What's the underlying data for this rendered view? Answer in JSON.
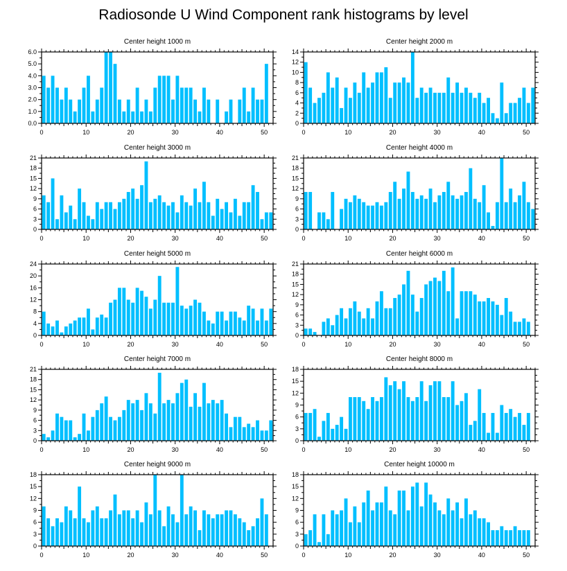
{
  "title": "Radiosonde U Wind Component rank histograms by level",
  "bar_color": "#00bfff",
  "axis_color": "#000000",
  "chart_data": [
    {
      "type": "bar",
      "title": "Center height 1000 m",
      "xlabel": "",
      "ylabel": "",
      "x": [
        0,
        1,
        2,
        3,
        4,
        5,
        6,
        7,
        8,
        9,
        10,
        11,
        12,
        13,
        14,
        15,
        16,
        17,
        18,
        19,
        20,
        21,
        22,
        23,
        24,
        25,
        26,
        27,
        28,
        29,
        30,
        31,
        32,
        33,
        34,
        35,
        36,
        37,
        38,
        39,
        40,
        41,
        42,
        43,
        44,
        45,
        46,
        47,
        48,
        49,
        50,
        51
      ],
      "values": [
        4,
        3,
        4,
        3,
        2,
        3,
        2,
        1,
        2,
        3,
        4,
        1,
        2,
        3,
        6,
        6,
        5,
        2,
        1,
        2,
        1,
        3,
        1,
        2,
        1,
        3,
        4,
        4,
        4,
        2,
        4,
        3,
        3,
        3,
        2,
        1,
        3,
        2,
        0,
        2,
        0,
        1,
        2,
        0,
        2,
        3,
        1,
        3,
        2,
        2,
        5,
        0
      ],
      "ylim": [
        0,
        6
      ],
      "yticks": [
        0,
        1,
        2,
        3,
        4,
        5,
        6
      ],
      "ytick_labels": [
        "0.0",
        "1.0",
        "2.0",
        "3.0",
        "4.0",
        "5.0",
        "6.0"
      ],
      "xlim": [
        0,
        52
      ],
      "xticks": [
        0,
        10,
        20,
        30,
        40,
        50
      ],
      "xtick_labels": [
        "0",
        "10",
        "20",
        "30",
        "40",
        "50"
      ]
    },
    {
      "type": "bar",
      "title": "Center height 2000 m",
      "xlabel": "",
      "ylabel": "",
      "x": [
        0,
        1,
        2,
        3,
        4,
        5,
        6,
        7,
        8,
        9,
        10,
        11,
        12,
        13,
        14,
        15,
        16,
        17,
        18,
        19,
        20,
        21,
        22,
        23,
        24,
        25,
        26,
        27,
        28,
        29,
        30,
        31,
        32,
        33,
        34,
        35,
        36,
        37,
        38,
        39,
        40,
        41,
        42,
        43,
        44,
        45,
        46,
        47,
        48,
        49,
        50,
        51
      ],
      "values": [
        12,
        7,
        4,
        5,
        6,
        10,
        7,
        9,
        3,
        7,
        5,
        8,
        6,
        10,
        7,
        8,
        10,
        10,
        11,
        5,
        8,
        8,
        9,
        8,
        14,
        5,
        7,
        6,
        7,
        6,
        6,
        6,
        9,
        6,
        8,
        6,
        7,
        6,
        5,
        6,
        4,
        5,
        2,
        1,
        8,
        2,
        4,
        4,
        5,
        7,
        4,
        7
      ],
      "ylim": [
        0,
        14
      ],
      "yticks": [
        0,
        2,
        4,
        6,
        8,
        10,
        12,
        14
      ],
      "ytick_labels": [
        "0",
        "2",
        "4",
        "6",
        "8",
        "10",
        "12",
        "14"
      ],
      "xlim": [
        0,
        52
      ],
      "xticks": [
        0,
        10,
        20,
        30,
        40,
        50
      ],
      "xtick_labels": [
        "0",
        "10",
        "20",
        "30",
        "40",
        "50"
      ]
    },
    {
      "type": "bar",
      "title": "Center height 3000 m",
      "xlabel": "",
      "ylabel": "",
      "x": [
        0,
        1,
        2,
        3,
        4,
        5,
        6,
        7,
        8,
        9,
        10,
        11,
        12,
        13,
        14,
        15,
        16,
        17,
        18,
        19,
        20,
        21,
        22,
        23,
        24,
        25,
        26,
        27,
        28,
        29,
        30,
        31,
        32,
        33,
        34,
        35,
        36,
        37,
        38,
        39,
        40,
        41,
        42,
        43,
        44,
        45,
        46,
        47,
        48,
        49,
        50,
        51
      ],
      "values": [
        10,
        8,
        15,
        3,
        10,
        5,
        7,
        3,
        12,
        8,
        4,
        3,
        8,
        6,
        8,
        8,
        6,
        8,
        9,
        11,
        12,
        9,
        13,
        20,
        8,
        9,
        10,
        8,
        7,
        8,
        5,
        10,
        8,
        7,
        12,
        8,
        14,
        8,
        4,
        9,
        6,
        8,
        5,
        9,
        4,
        8,
        8,
        13,
        11,
        3,
        5,
        5
      ],
      "ylim": [
        0,
        21
      ],
      "yticks": [
        0,
        3,
        6,
        9,
        12,
        15,
        18,
        21
      ],
      "ytick_labels": [
        "0",
        "3",
        "6",
        "9",
        "12",
        "15",
        "18",
        "21"
      ],
      "xlim": [
        0,
        52
      ],
      "xticks": [
        0,
        10,
        20,
        30,
        40,
        50
      ],
      "xtick_labels": [
        "0",
        "10",
        "20",
        "30",
        "40",
        "50"
      ]
    },
    {
      "type": "bar",
      "title": "Center height 4000 m",
      "xlabel": "",
      "ylabel": "",
      "x": [
        0,
        1,
        2,
        3,
        4,
        5,
        6,
        7,
        8,
        9,
        10,
        11,
        12,
        13,
        14,
        15,
        16,
        17,
        18,
        19,
        20,
        21,
        22,
        23,
        24,
        25,
        26,
        27,
        28,
        29,
        30,
        31,
        32,
        33,
        34,
        35,
        36,
        37,
        38,
        39,
        40,
        41,
        42,
        43,
        44,
        45,
        46,
        47,
        48,
        49,
        50,
        51
      ],
      "values": [
        11,
        11,
        0,
        5,
        5,
        3,
        11,
        0,
        6,
        9,
        8,
        10,
        9,
        8,
        7,
        7,
        8,
        7,
        8,
        11,
        14,
        9,
        12,
        17,
        11,
        9,
        10,
        9,
        12,
        8,
        10,
        11,
        14,
        10,
        9,
        10,
        11,
        18,
        9,
        8,
        13,
        5,
        1,
        8,
        21,
        8,
        12,
        8,
        10,
        14,
        8,
        6
      ],
      "ylim": [
        0,
        21
      ],
      "yticks": [
        0,
        3,
        6,
        9,
        12,
        15,
        18,
        21
      ],
      "ytick_labels": [
        "0",
        "3",
        "6",
        "9",
        "12",
        "15",
        "18",
        "21"
      ],
      "xlim": [
        0,
        52
      ],
      "xticks": [
        0,
        10,
        20,
        30,
        40,
        50
      ],
      "xtick_labels": [
        "0",
        "10",
        "20",
        "30",
        "40",
        "50"
      ]
    },
    {
      "type": "bar",
      "title": "Center height 5000 m",
      "xlabel": "",
      "ylabel": "",
      "x": [
        0,
        1,
        2,
        3,
        4,
        5,
        6,
        7,
        8,
        9,
        10,
        11,
        12,
        13,
        14,
        15,
        16,
        17,
        18,
        19,
        20,
        21,
        22,
        23,
        24,
        25,
        26,
        27,
        28,
        29,
        30,
        31,
        32,
        33,
        34,
        35,
        36,
        37,
        38,
        39,
        40,
        41,
        42,
        43,
        44,
        45,
        46,
        47,
        48,
        49,
        50,
        51
      ],
      "values": [
        8,
        4,
        3,
        5,
        1,
        3,
        4,
        5,
        6,
        6,
        9,
        2,
        6,
        7,
        6,
        11,
        12,
        16,
        16,
        12,
        11,
        16,
        15,
        13,
        9,
        12,
        20,
        11,
        11,
        11,
        23,
        10,
        9,
        10,
        12,
        11,
        8,
        5,
        4,
        8,
        8,
        5,
        8,
        8,
        6,
        5,
        10,
        9,
        5,
        9,
        5,
        9
      ],
      "ylim": [
        0,
        24
      ],
      "yticks": [
        0,
        4,
        8,
        12,
        16,
        20,
        24
      ],
      "ytick_labels": [
        "0",
        "4",
        "8",
        "12",
        "16",
        "20",
        "24"
      ],
      "xlim": [
        0,
        52
      ],
      "xticks": [
        0,
        10,
        20,
        30,
        40,
        50
      ],
      "xtick_labels": [
        "0",
        "10",
        "20",
        "30",
        "40",
        "50"
      ]
    },
    {
      "type": "bar",
      "title": "Center height 6000 m",
      "xlabel": "",
      "ylabel": "",
      "x": [
        0,
        1,
        2,
        3,
        4,
        5,
        6,
        7,
        8,
        9,
        10,
        11,
        12,
        13,
        14,
        15,
        16,
        17,
        18,
        19,
        20,
        21,
        22,
        23,
        24,
        25,
        26,
        27,
        28,
        29,
        30,
        31,
        32,
        33,
        34,
        35,
        36,
        37,
        38,
        39,
        40,
        41,
        42,
        43,
        44,
        45,
        46,
        47,
        48,
        49,
        50,
        51
      ],
      "values": [
        2,
        2,
        1,
        0,
        4,
        5,
        3,
        6,
        8,
        5,
        8,
        10,
        7,
        5,
        8,
        5,
        10,
        13,
        8,
        8,
        11,
        12,
        15,
        19,
        12,
        7,
        11,
        15,
        16,
        17,
        16,
        19,
        13,
        20,
        5,
        13,
        13,
        13,
        12,
        10,
        10,
        11,
        10,
        9,
        6,
        11,
        7,
        4,
        4,
        5,
        4,
        0
      ],
      "ylim": [
        0,
        21
      ],
      "yticks": [
        0,
        3,
        6,
        9,
        12,
        15,
        18,
        21
      ],
      "ytick_labels": [
        "0",
        "3",
        "6",
        "9",
        "12",
        "15",
        "18",
        "21"
      ],
      "xlim": [
        0,
        52
      ],
      "xticks": [
        0,
        10,
        20,
        30,
        40,
        50
      ],
      "xtick_labels": [
        "0",
        "10",
        "20",
        "30",
        "40",
        "50"
      ]
    },
    {
      "type": "bar",
      "title": "Center height 7000 m",
      "xlabel": "",
      "ylabel": "",
      "x": [
        0,
        1,
        2,
        3,
        4,
        5,
        6,
        7,
        8,
        9,
        10,
        11,
        12,
        13,
        14,
        15,
        16,
        17,
        18,
        19,
        20,
        21,
        22,
        23,
        24,
        25,
        26,
        27,
        28,
        29,
        30,
        31,
        32,
        33,
        34,
        35,
        36,
        37,
        38,
        39,
        40,
        41,
        42,
        43,
        44,
        45,
        46,
        47,
        48,
        49,
        50,
        51
      ],
      "values": [
        2,
        1,
        3,
        8,
        7,
        6,
        6,
        1,
        2,
        8,
        3,
        7,
        9,
        11,
        13,
        7,
        6,
        7,
        9,
        12,
        11,
        12,
        9,
        14,
        11,
        8,
        20,
        11,
        12,
        11,
        14,
        17,
        18,
        10,
        14,
        10,
        17,
        11,
        12,
        11,
        12,
        8,
        4,
        7,
        7,
        4,
        5,
        4,
        6,
        3,
        3,
        6
      ],
      "ylim": [
        0,
        21
      ],
      "yticks": [
        0,
        3,
        6,
        9,
        12,
        15,
        18,
        21
      ],
      "ytick_labels": [
        "0",
        "3",
        "6",
        "9",
        "12",
        "15",
        "18",
        "21"
      ],
      "xlim": [
        0,
        52
      ],
      "xticks": [
        0,
        10,
        20,
        30,
        40,
        50
      ],
      "xtick_labels": [
        "0",
        "10",
        "20",
        "30",
        "40",
        "50"
      ]
    },
    {
      "type": "bar",
      "title": "Center height 8000 m",
      "xlabel": "",
      "ylabel": "",
      "x": [
        0,
        1,
        2,
        3,
        4,
        5,
        6,
        7,
        8,
        9,
        10,
        11,
        12,
        13,
        14,
        15,
        16,
        17,
        18,
        19,
        20,
        21,
        22,
        23,
        24,
        25,
        26,
        27,
        28,
        29,
        30,
        31,
        32,
        33,
        34,
        35,
        36,
        37,
        38,
        39,
        40,
        41,
        42,
        43,
        44,
        45,
        46,
        47,
        48,
        49,
        50,
        51
      ],
      "values": [
        7,
        7,
        8,
        1,
        5,
        7,
        3,
        4,
        6,
        3,
        11,
        11,
        11,
        10,
        8,
        11,
        10,
        11,
        16,
        14,
        15,
        13,
        15,
        11,
        10,
        11,
        15,
        10,
        14,
        15,
        15,
        11,
        11,
        15,
        9,
        10,
        12,
        4,
        5,
        13,
        7,
        2,
        7,
        2,
        9,
        7,
        8,
        6,
        7,
        4,
        7,
        0
      ],
      "ylim": [
        0,
        18
      ],
      "yticks": [
        0,
        3,
        6,
        9,
        12,
        15,
        18
      ],
      "ytick_labels": [
        "0",
        "3",
        "6",
        "9",
        "12",
        "15",
        "18"
      ],
      "xlim": [
        0,
        52
      ],
      "xticks": [
        0,
        10,
        20,
        30,
        40,
        50
      ],
      "xtick_labels": [
        "0",
        "10",
        "20",
        "30",
        "40",
        "50"
      ]
    },
    {
      "type": "bar",
      "title": "Center height 9000 m",
      "xlabel": "",
      "ylabel": "",
      "x": [
        0,
        1,
        2,
        3,
        4,
        5,
        6,
        7,
        8,
        9,
        10,
        11,
        12,
        13,
        14,
        15,
        16,
        17,
        18,
        19,
        20,
        21,
        22,
        23,
        24,
        25,
        26,
        27,
        28,
        29,
        30,
        31,
        32,
        33,
        34,
        35,
        36,
        37,
        38,
        39,
        40,
        41,
        42,
        43,
        44,
        45,
        46,
        47,
        48,
        49,
        50,
        51
      ],
      "values": [
        10,
        7,
        5,
        7,
        6,
        10,
        9,
        7,
        15,
        7,
        6,
        9,
        10,
        7,
        7,
        9,
        13,
        8,
        9,
        9,
        7,
        9,
        6,
        11,
        8,
        18,
        9,
        5,
        10,
        8,
        6,
        18,
        8,
        10,
        9,
        4,
        9,
        8,
        7,
        8,
        8,
        9,
        9,
        8,
        7,
        6,
        4,
        5,
        7,
        12,
        8,
        0
      ],
      "ylim": [
        0,
        18
      ],
      "yticks": [
        0,
        3,
        6,
        9,
        12,
        15,
        18
      ],
      "ytick_labels": [
        "0",
        "3",
        "6",
        "9",
        "12",
        "15",
        "18"
      ],
      "xlim": [
        0,
        52
      ],
      "xticks": [
        0,
        10,
        20,
        30,
        40,
        50
      ],
      "xtick_labels": [
        "0",
        "10",
        "20",
        "30",
        "40",
        "50"
      ]
    },
    {
      "type": "bar",
      "title": "Center height 10000 m",
      "xlabel": "",
      "ylabel": "",
      "x": [
        0,
        1,
        2,
        3,
        4,
        5,
        6,
        7,
        8,
        9,
        10,
        11,
        12,
        13,
        14,
        15,
        16,
        17,
        18,
        19,
        20,
        21,
        22,
        23,
        24,
        25,
        26,
        27,
        28,
        29,
        30,
        31,
        32,
        33,
        34,
        35,
        36,
        37,
        38,
        39,
        40,
        41,
        42,
        43,
        44,
        45,
        46,
        47,
        48,
        49,
        50,
        51
      ],
      "values": [
        3,
        4,
        8,
        1,
        8,
        3,
        9,
        8,
        9,
        12,
        6,
        10,
        6,
        11,
        14,
        9,
        11,
        11,
        15,
        9,
        8,
        14,
        14,
        9,
        15,
        16,
        10,
        16,
        13,
        11,
        9,
        8,
        12,
        9,
        11,
        7,
        12,
        8,
        9,
        7,
        7,
        6,
        4,
        4,
        5,
        4,
        4,
        5,
        4,
        4,
        4,
        0
      ],
      "ylim": [
        0,
        18
      ],
      "yticks": [
        0,
        3,
        6,
        9,
        12,
        15,
        18
      ],
      "ytick_labels": [
        "0",
        "3",
        "6",
        "9",
        "12",
        "15",
        "18"
      ],
      "xlim": [
        0,
        52
      ],
      "xticks": [
        0,
        10,
        20,
        30,
        40,
        50
      ],
      "xtick_labels": [
        "0",
        "10",
        "20",
        "30",
        "40",
        "50"
      ]
    }
  ]
}
